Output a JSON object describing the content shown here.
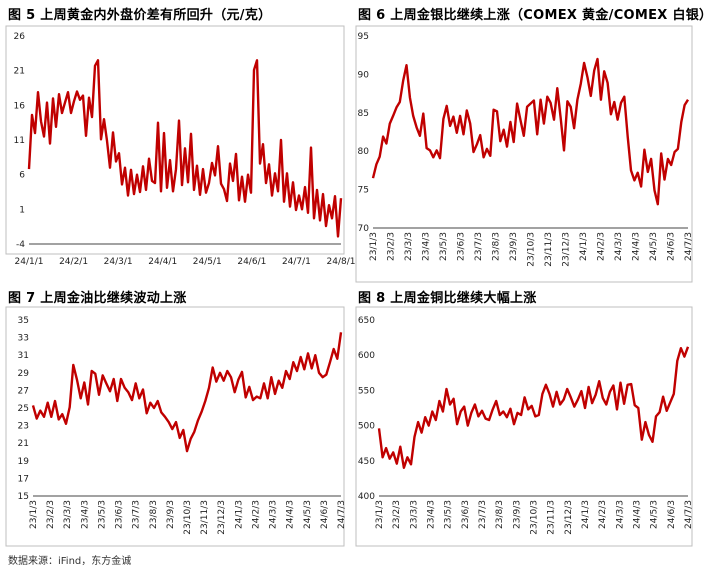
{
  "source": "数据来源：iFind，东方金诚",
  "colors": {
    "series": "#c00000",
    "frame": "#bfbfbf"
  },
  "chart_data": [
    {
      "type": "line",
      "title": "图 5  上周黄金内外盘价差有所回升（元/克）",
      "y_ticks": [
        "26",
        "21",
        "16",
        "11",
        "6",
        "1",
        "-4"
      ],
      "ylim": [
        -4,
        26
      ],
      "x_ticks": [
        "24/1/1",
        "24/2/1",
        "24/3/1",
        "24/4/1",
        "24/5/1",
        "24/6/1",
        "24/7/1",
        "24/8/1"
      ],
      "x_tick_rotated": false,
      "series": [
        {
          "values": [
            6.8,
            14.6,
            12.0,
            17.9,
            13.7,
            11.5,
            16.4,
            10.5,
            17.0,
            12.9,
            17.6,
            14.9,
            16.4,
            17.9,
            14.9,
            16.6,
            18.0,
            16.8,
            17.4,
            11.6,
            17.1,
            14.3,
            21.7,
            22.5,
            11.1,
            14.0,
            10.9,
            7.0,
            12.1,
            7.9,
            9.1,
            4.6,
            7.0,
            3.0,
            6.7,
            3.2,
            6.0,
            3.5,
            7.2,
            3.8,
            8.3,
            5.1,
            4.8,
            13.5,
            3.6,
            12.0,
            4.1,
            8.1,
            3.6,
            6.8,
            13.8,
            4.5,
            9.8,
            4.9,
            11.9,
            3.8,
            7.3,
            3.1,
            6.8,
            3.4,
            4.8,
            7.7,
            5.9,
            10.1,
            4.7,
            3.9,
            2.2,
            7.6,
            5.1,
            9.0,
            2.3,
            5.7,
            2.1,
            6.0,
            3.4,
            21.1,
            22.5,
            7.6,
            10.4,
            4.8,
            7.5,
            3.0,
            6.2,
            3.6,
            11.0,
            2.1,
            6.2,
            1.4,
            4.9,
            0.9,
            3.0,
            1.0,
            4.2,
            0.5,
            9.9,
            -0.3,
            3.8,
            -0.6,
            3.2,
            -1.4,
            1.6,
            -0.3,
            2.9,
            -2.9,
            2.6
          ]
        }
      ]
    },
    {
      "type": "line",
      "title": "图 6  上周金银比继续上涨（COMEX 黄金/COMEX 白银）",
      "y_ticks": [
        "95",
        "90",
        "85",
        "80",
        "75",
        "70"
      ],
      "ylim": [
        70,
        95
      ],
      "x_ticks": [
        "23/1/3",
        "23/2/3",
        "23/3/3",
        "23/4/3",
        "23/5/3",
        "23/6/3",
        "23/7/3",
        "23/8/3",
        "23/9/3",
        "23/10/3",
        "23/11/3",
        "23/12/3",
        "24/1/3",
        "24/2/3",
        "24/3/3",
        "24/4/3",
        "24/5/3",
        "24/6/3",
        "24/7/3"
      ],
      "x_tick_rotated": true,
      "series": [
        {
          "values": [
            76.5,
            78.3,
            79.3,
            81.9,
            81.0,
            83.6,
            84.6,
            85.7,
            86.4,
            89.2,
            91.2,
            87.0,
            84.6,
            83.1,
            82.0,
            84.9,
            80.4,
            80.1,
            79.2,
            80.1,
            79.1,
            84.2,
            85.9,
            83.3,
            84.5,
            82.4,
            84.6,
            82.2,
            85.3,
            83.6,
            79.9,
            80.9,
            82.1,
            79.2,
            80.3,
            79.4,
            85.4,
            85.2,
            81.3,
            82.8,
            80.6,
            83.8,
            81.2,
            86.2,
            84.1,
            82.0,
            85.8,
            86.2,
            86.6,
            82.2,
            86.7,
            83.6,
            87.1,
            86.3,
            84.1,
            88.2,
            84.3,
            80.1,
            86.5,
            85.8,
            83.0,
            86.7,
            88.8,
            91.5,
            89.6,
            87.2,
            90.5,
            92.0,
            86.7,
            90.4,
            88.9,
            84.8,
            86.4,
            84.1,
            86.3,
            87.1,
            81.9,
            77.5,
            76.2,
            77.2,
            75.4,
            80.2,
            77.3,
            79.0,
            74.9,
            73.1,
            79.7,
            76.3,
            79.0,
            78.2,
            79.9,
            80.3,
            83.8,
            86.0,
            86.7
          ]
        }
      ]
    },
    {
      "type": "line",
      "title": "图 7  上周金油比继续波动上涨",
      "y_ticks": [
        "35",
        "33",
        "31",
        "29",
        "27",
        "25",
        "23",
        "21",
        "19",
        "17",
        "15"
      ],
      "ylim": [
        15,
        35
      ],
      "x_ticks": [
        "23/1/3",
        "23/2/3",
        "23/3/3",
        "23/4/3",
        "23/5/3",
        "23/6/3",
        "23/7/3",
        "23/8/3",
        "23/9/3",
        "23/10/3",
        "23/11/3",
        "23/12/3",
        "24/1/3",
        "24/2/3",
        "24/3/3",
        "24/4/3",
        "24/5/3",
        "24/6/3",
        "24/7/3"
      ],
      "x_tick_rotated": true,
      "series": [
        {
          "values": [
            25.3,
            23.8,
            24.7,
            24.0,
            25.6,
            24.0,
            25.8,
            23.7,
            24.3,
            23.2,
            25.1,
            29.9,
            28.2,
            26.1,
            27.9,
            25.4,
            29.2,
            28.9,
            26.5,
            28.7,
            27.8,
            26.9,
            28.3,
            25.8,
            28.3,
            27.3,
            26.8,
            25.9,
            27.8,
            26.1,
            27.1,
            24.4,
            25.6,
            25.0,
            25.8,
            24.5,
            24.0,
            23.4,
            22.6,
            23.4,
            21.6,
            22.5,
            20.1,
            21.5,
            22.3,
            23.6,
            24.6,
            25.8,
            27.3,
            29.6,
            28.0,
            29.0,
            28.1,
            29.2,
            28.5,
            26.8,
            28.2,
            29.1,
            26.2,
            27.4,
            25.9,
            26.3,
            26.1,
            27.8,
            26.1,
            28.5,
            26.6,
            28.1,
            27.3,
            29.2,
            28.3,
            30.2,
            29.2,
            30.8,
            29.4,
            31.2,
            29.5,
            31.0,
            29.0,
            28.5,
            28.8,
            30.2,
            31.7,
            30.6,
            33.6
          ]
        }
      ]
    },
    {
      "type": "line",
      "title": "图 8  上周金铜比继续大幅上涨",
      "y_ticks": [
        "650",
        "600",
        "550",
        "500",
        "450",
        "400"
      ],
      "ylim": [
        400,
        650
      ],
      "x_ticks": [
        "23/1/3",
        "23/2/3",
        "23/3/3",
        "23/4/3",
        "23/5/3",
        "23/6/3",
        "23/7/3",
        "23/8/3",
        "23/9/3",
        "23/10/3",
        "23/11/3",
        "23/12/3",
        "24/1/3",
        "24/2/3",
        "24/3/3",
        "24/4/3",
        "24/5/3",
        "24/6/3",
        "24/7/3"
      ],
      "x_tick_rotated": true,
      "series": [
        {
          "values": [
            496,
            455,
            468,
            453,
            462,
            446,
            470,
            440,
            455,
            445,
            484,
            505,
            490,
            512,
            500,
            520,
            508,
            535,
            520,
            552,
            530,
            538,
            502,
            520,
            527,
            500,
            518,
            530,
            513,
            521,
            510,
            508,
            523,
            535,
            515,
            520,
            512,
            524,
            502,
            518,
            515,
            540,
            523,
            528,
            513,
            515,
            545,
            558,
            545,
            527,
            548,
            530,
            537,
            552,
            540,
            527,
            537,
            549,
            525,
            555,
            532,
            544,
            563,
            539,
            530,
            548,
            557,
            523,
            561,
            531,
            558,
            559,
            529,
            525,
            480,
            505,
            487,
            477,
            513,
            519,
            541,
            521,
            533,
            545,
            592,
            610,
            598,
            612
          ]
        }
      ]
    }
  ]
}
